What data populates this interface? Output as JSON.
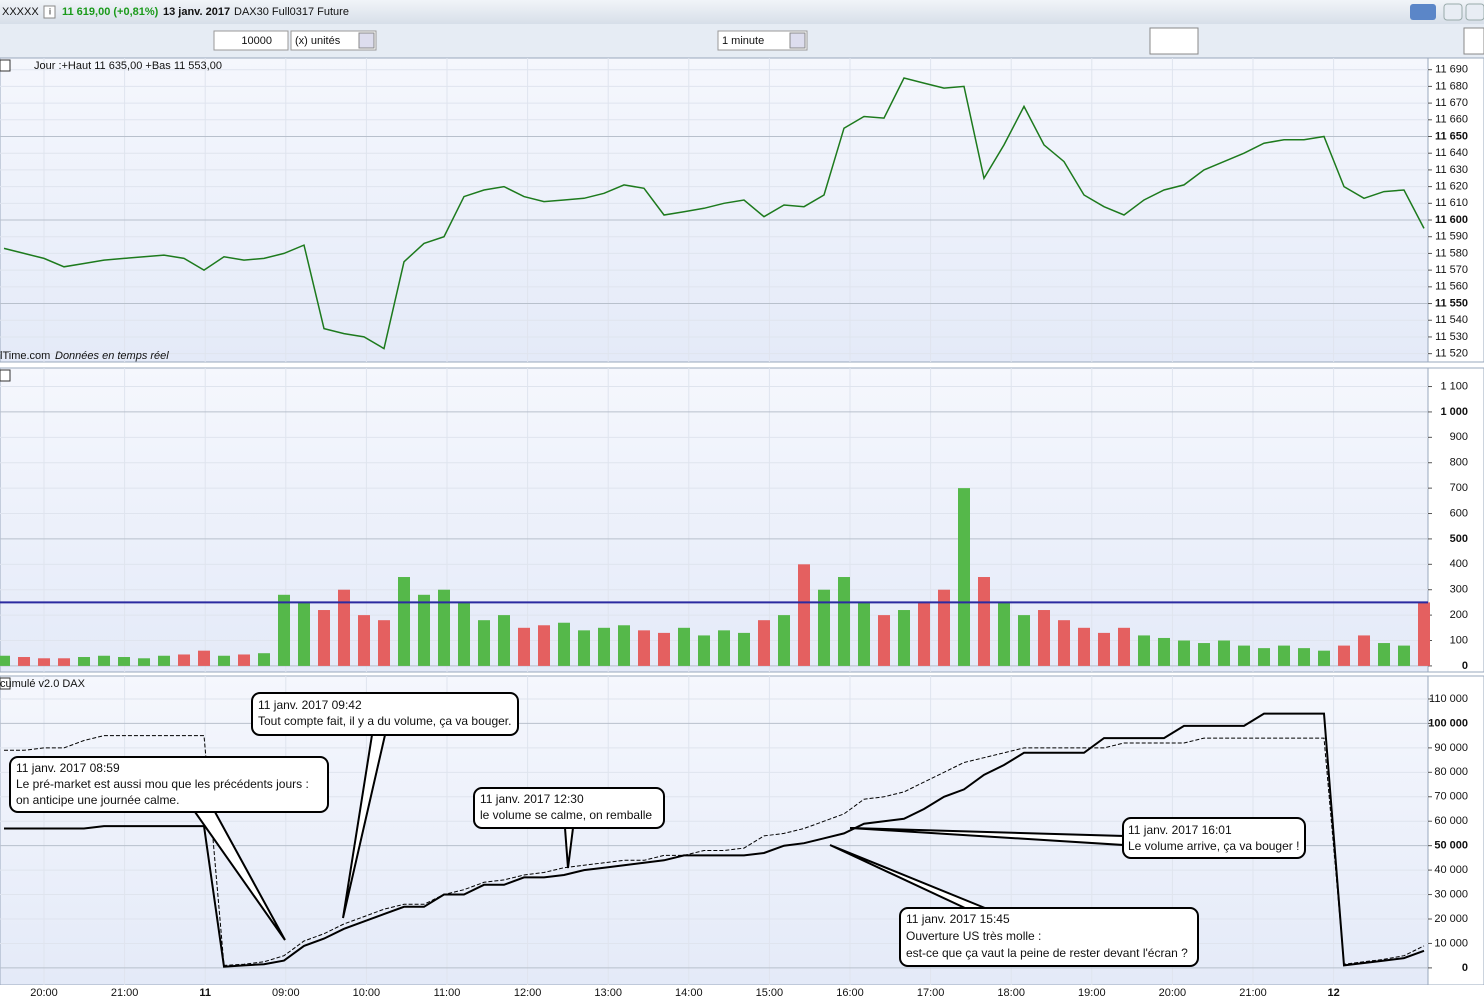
{
  "window": {
    "symbol": "XXXXX",
    "price": "11 619,00 (+0,81%)",
    "date": "13 janv. 2017",
    "instrument": "DAX30 Full0317 Future"
  },
  "toolbar": {
    "quantity": "10000",
    "unit": "(x) unités",
    "interval": "1 minute"
  },
  "time_axis": [
    "20:00",
    "21:00",
    "11",
    "09:00",
    "10:00",
    "11:00",
    "12:00",
    "13:00",
    "14:00",
    "15:00",
    "16:00",
    "17:00",
    "18:00",
    "19:00",
    "20:00",
    "21:00",
    "12"
  ],
  "chart_data": [
    {
      "type": "line",
      "title": "Jour :+Haut 11 635,00 +Bas 11 553,00",
      "source": "lTime.com",
      "source_note": "Données en temps réel",
      "color": "#1d7a1d",
      "values": [
        11583,
        11580,
        11577,
        11572,
        11574,
        11576,
        11577,
        11578,
        11579,
        11577,
        11570,
        11578,
        11576,
        11577,
        11580,
        11585,
        11535,
        11532,
        11530,
        11523,
        11575,
        11586,
        11590,
        11614,
        11618,
        11620,
        11614,
        11611,
        11612,
        11613,
        11616,
        11621,
        11619,
        11603,
        11605,
        11607,
        11610,
        11612,
        11602,
        11609,
        11608,
        11615,
        11655,
        11662,
        11661,
        11685,
        11682,
        11679,
        11680,
        11625,
        11645,
        11668,
        11645,
        11635,
        11615,
        11608,
        11603,
        11612,
        11618,
        11621,
        11630,
        11635,
        11640,
        11646,
        11648,
        11648,
        11650,
        11620,
        11613,
        11617,
        11618,
        11595
      ],
      "ylim": [
        11515,
        11697
      ],
      "yticks": [
        {
          "value": 11520,
          "label": "11 520"
        },
        {
          "value": 11530,
          "label": "11 530"
        },
        {
          "value": 11540,
          "label": "11 540"
        },
        {
          "value": 11550,
          "label": "11 550"
        },
        {
          "value": 11560,
          "label": "11 560"
        },
        {
          "value": 11570,
          "label": "11 570"
        },
        {
          "value": 11580,
          "label": "11 580"
        },
        {
          "value": 11590,
          "label": "11 590"
        },
        {
          "value": 11600,
          "label": "11 600"
        },
        {
          "value": 11610,
          "label": "11 610"
        },
        {
          "value": 11620,
          "label": "11 620"
        },
        {
          "value": 11630,
          "label": "11 630"
        },
        {
          "value": 11640,
          "label": "11 640"
        },
        {
          "value": 11650,
          "label": "11 650"
        },
        {
          "value": 11660,
          "label": "11 660"
        },
        {
          "value": 11670,
          "label": "11 670"
        },
        {
          "value": 11680,
          "label": "11 680"
        },
        {
          "value": 11690,
          "label": "11 690"
        }
      ],
      "grid": true
    },
    {
      "type": "bar",
      "up_color": "#55b84a",
      "down_color": "#e46060",
      "threshold": 250,
      "threshold_color": "#2b2ba0",
      "values": [
        40,
        35,
        30,
        30,
        35,
        40,
        35,
        30,
        40,
        45,
        60,
        40,
        45,
        50,
        280,
        250,
        220,
        300,
        200,
        180,
        350,
        280,
        300,
        250,
        180,
        200,
        150,
        160,
        170,
        140,
        150,
        160,
        140,
        130,
        150,
        120,
        140,
        130,
        180,
        200,
        400,
        300,
        350,
        250,
        200,
        220,
        250,
        300,
        700,
        350,
        250,
        200,
        220,
        180,
        150,
        130,
        150,
        120,
        110,
        100,
        90,
        100,
        80,
        70,
        80,
        70,
        60,
        80,
        120,
        90,
        80,
        250
      ],
      "ylim": [
        -24,
        1173
      ],
      "yticks": [
        0,
        100,
        200,
        300,
        400,
        500,
        600,
        700,
        800,
        900,
        {
          "value": 1000,
          "label": "1 000"
        },
        {
          "value": 1100,
          "label": "1 100"
        }
      ],
      "grid": true
    },
    {
      "type": "line",
      "title": "cumulé v2.0 DAX",
      "series": [
        {
          "color": "#000000",
          "dashed": false,
          "values": [
            57000,
            57000,
            57000,
            57000,
            57000,
            58000,
            58000,
            58000,
            58000,
            58000,
            58000,
            500,
            1000,
            1500,
            3000,
            9000,
            12000,
            16000,
            19000,
            22000,
            25000,
            25000,
            30000,
            30000,
            34000,
            34000,
            37000,
            37000,
            38000,
            40000,
            41000,
            42000,
            43000,
            44000,
            46000,
            46000,
            46000,
            46000,
            47000,
            50000,
            51000,
            53000,
            55000,
            59000,
            60000,
            61000,
            65000,
            70000,
            73000,
            79000,
            83000,
            88000,
            88000,
            88000,
            88000,
            94000,
            94000,
            94000,
            94000,
            99000,
            99000,
            99000,
            99000,
            104000,
            104000,
            104000,
            104000,
            1000,
            2000,
            3000,
            4000,
            7000
          ]
        },
        {
          "color": "#000000",
          "dashed": true,
          "values": [
            89000,
            89000,
            90000,
            90000,
            93000,
            95000,
            95000,
            95000,
            95000,
            95000,
            95000,
            1000,
            1500,
            2500,
            5000,
            11000,
            14000,
            18000,
            21000,
            24000,
            26000,
            26000,
            30000,
            32000,
            35000,
            36000,
            38000,
            39000,
            41000,
            42000,
            43000,
            44000,
            44000,
            46000,
            46000,
            48000,
            48000,
            49000,
            54000,
            55000,
            57000,
            60000,
            63000,
            69000,
            70000,
            72000,
            76000,
            80000,
            84000,
            86000,
            88000,
            90000,
            90000,
            90000,
            90000,
            90000,
            92000,
            92000,
            92000,
            92000,
            94000,
            94000,
            94000,
            94000,
            94000,
            94000,
            94000,
            1500,
            2500,
            3500,
            5000,
            9000
          ]
        }
      ],
      "ylim": [
        -7000,
        119400
      ],
      "yticks": [
        0,
        {
          "value": 10000,
          "label": "10 000"
        },
        {
          "value": 20000,
          "label": "20 000"
        },
        {
          "value": 30000,
          "label": "30 000"
        },
        {
          "value": 40000,
          "label": "40 000"
        },
        {
          "value": 50000,
          "label": "50 000"
        },
        {
          "value": 60000,
          "label": "60 000"
        },
        {
          "value": 70000,
          "label": "70 000"
        },
        {
          "value": 80000,
          "label": "80 000"
        },
        {
          "value": 90000,
          "label": "90 000"
        },
        {
          "value": 100000,
          "label": "100 000"
        },
        {
          "value": 110000,
          "label": "110 000"
        }
      ],
      "grid": true,
      "annotations": [
        {
          "date": "11 janv. 2017 08:59",
          "text": [
            "Le pré-market est aussi mou que les précédents jours :",
            "on anticipe une journée calme."
          ]
        },
        {
          "date": "11 janv. 2017 09:42",
          "text": [
            "Tout compte fait, il y a du volume, ça va bouger."
          ]
        },
        {
          "date": "11 janv. 2017 12:30",
          "text": [
            "le volume se calme, on remballe"
          ]
        },
        {
          "date": "11 janv. 2017 16:01",
          "text": [
            "Le volume arrive, ça va bouger !"
          ]
        },
        {
          "date": "11 janv. 2017 15:45",
          "text": [
            "Ouverture US très molle :",
            "est-ce que ça vaut la peine de rester devant l'écran ?"
          ]
        }
      ]
    }
  ]
}
